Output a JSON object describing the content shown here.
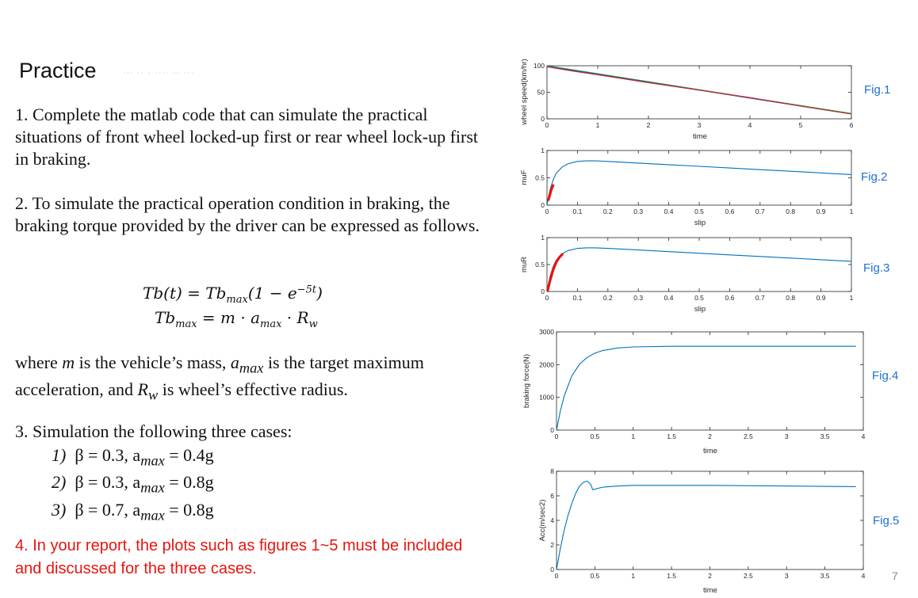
{
  "slide": {
    "title": "Practice",
    "faded_title_text": "··· ·· · ···· ·· ···",
    "item1": "1. Complete the matlab code that can simulate the practical situations of front wheel locked-up first or rear wheel lock-up first in braking.",
    "item2": "2. To simulate the practical operation condition in braking, the braking torque provided by the driver can be expressed as follows.",
    "eq1": {
      "lhs": "Tb(t) = Tb",
      "sub": "max",
      "rhs": "(1 − e",
      "sup": "−5t",
      "end": ")"
    },
    "eq2": {
      "lhs": "Tb",
      "sub": "max",
      "mid": " = m · a",
      "sub2": "max",
      "end": " · R",
      "sub3": "w"
    },
    "where_line1_a": "where ",
    "where_m": "m",
    "where_line1_b": " is the vehicle’s mass, ",
    "where_a": "a",
    "where_a_sub": "max",
    "where_line1_c": " is the target maximum",
    "where_line2_a": "acceleration, and ",
    "where_R": "R",
    "where_R_sub": "w",
    "where_line2_b": " is wheel’s effective radius.",
    "item3": "3. Simulation the following three cases:",
    "cases": [
      {
        "num": "1)",
        "beta": "β = 0.3, a",
        "sub": "max",
        "val": " = 0.4g"
      },
      {
        "num": "2)",
        "beta": "β = 0.3, a",
        "sub": "max",
        "val": " = 0.8g"
      },
      {
        "num": "3)",
        "beta": "β = 0.7, a",
        "sub": "max",
        "val": " = 0.8g"
      }
    ],
    "item4": "4.  In your report, the plots such as figures 1~5 must be included and discussed for the three cases.",
    "page_number": "7",
    "colors": {
      "red_text": "#e8140f",
      "fig_label": "#1f6fd1",
      "line_blue": "#0072bd",
      "line_red": "#d62728",
      "line_green": "#1b9e3a"
    }
  },
  "chart_data": [
    {
      "type": "line",
      "fig_label": "Fig.1",
      "xlabel": "time",
      "ylabel": "wheel speed(km/hr)",
      "xlim": [
        0,
        6
      ],
      "ylim": [
        0,
        100
      ],
      "xticks": [
        "0",
        "1",
        "2",
        "3",
        "4",
        "5",
        "6"
      ],
      "yticks": [
        "0",
        "50",
        "100"
      ],
      "series": [
        {
          "color": "#1b9e3a",
          "x": [
            0,
            6
          ],
          "y": [
            100,
            10
          ]
        },
        {
          "color": "#1f4fbf",
          "x": [
            0,
            6
          ],
          "y": [
            99,
            9
          ]
        },
        {
          "color": "#d62728",
          "x": [
            0,
            0.5,
            1,
            2,
            3,
            4,
            5,
            6
          ],
          "y": [
            98,
            90,
            83,
            68,
            54,
            40,
            24,
            9
          ]
        }
      ]
    },
    {
      "type": "line",
      "fig_label": "Fig.2",
      "xlabel": "slip",
      "ylabel": "muF",
      "xlim": [
        0,
        1
      ],
      "ylim": [
        0,
        1
      ],
      "xticks": [
        "0",
        "0.1",
        "0.2",
        "0.3",
        "0.4",
        "0.5",
        "0.6",
        "0.7",
        "0.8",
        "0.9",
        "1"
      ],
      "yticks": [
        "0",
        "0.5",
        "1"
      ],
      "series": [
        {
          "color": "#0072bd",
          "x": [
            0,
            0.01,
            0.02,
            0.03,
            0.05,
            0.07,
            0.1,
            0.13,
            0.16,
            0.2,
            0.3,
            0.4,
            0.5,
            0.6,
            0.7,
            0.8,
            0.9,
            1.0
          ],
          "y": [
            0,
            0.28,
            0.46,
            0.58,
            0.7,
            0.76,
            0.8,
            0.81,
            0.81,
            0.8,
            0.77,
            0.74,
            0.71,
            0.68,
            0.65,
            0.62,
            0.59,
            0.56
          ]
        },
        {
          "color": "#e8140f",
          "x": [
            0.005,
            0.01,
            0.015,
            0.02
          ],
          "y": [
            0.1,
            0.2,
            0.3,
            0.36
          ],
          "bold": true
        }
      ]
    },
    {
      "type": "line",
      "fig_label": "Fig.3",
      "xlabel": "slip",
      "ylabel": "muR",
      "xlim": [
        0,
        1
      ],
      "ylim": [
        0,
        1
      ],
      "xticks": [
        "0",
        "0.1",
        "0.2",
        "0.3",
        "0.4",
        "0.5",
        "0.6",
        "0.7",
        "0.8",
        "0.9",
        "1"
      ],
      "yticks": [
        "0",
        "0.5",
        "1"
      ],
      "series": [
        {
          "color": "#0072bd",
          "x": [
            0,
            0.01,
            0.02,
            0.03,
            0.05,
            0.07,
            0.1,
            0.13,
            0.16,
            0.2,
            0.3,
            0.4,
            0.5,
            0.6,
            0.7,
            0.8,
            0.9,
            1.0
          ],
          "y": [
            0,
            0.28,
            0.46,
            0.58,
            0.7,
            0.76,
            0.8,
            0.81,
            0.81,
            0.8,
            0.77,
            0.74,
            0.71,
            0.68,
            0.65,
            0.62,
            0.59,
            0.56
          ]
        },
        {
          "color": "#e8140f",
          "x": [
            0.002,
            0.01,
            0.02,
            0.03,
            0.04,
            0.05
          ],
          "y": [
            0.02,
            0.2,
            0.4,
            0.54,
            0.63,
            0.69
          ],
          "bold": true
        }
      ]
    },
    {
      "type": "line",
      "fig_label": "Fig.4",
      "xlabel": "time",
      "ylabel": "braking force(N)",
      "xlim": [
        0,
        4
      ],
      "ylim": [
        0,
        3000
      ],
      "xticks": [
        "0",
        "0.5",
        "1",
        "1.5",
        "2",
        "2.5",
        "3",
        "3.5",
        "4"
      ],
      "yticks": [
        "0",
        "1000",
        "2000",
        "3000"
      ],
      "series": [
        {
          "color": "#0072bd",
          "x": [
            0,
            0.05,
            0.1,
            0.2,
            0.3,
            0.4,
            0.5,
            0.6,
            0.8,
            1.0,
            1.5,
            2.0,
            3.0,
            3.9
          ],
          "y": [
            0,
            580,
            1040,
            1660,
            2010,
            2220,
            2350,
            2430,
            2510,
            2540,
            2560,
            2560,
            2560,
            2560
          ]
        }
      ]
    },
    {
      "type": "line",
      "fig_label": "Fig.5",
      "xlabel": "time",
      "ylabel": "Acc(m/sec2)",
      "xlim": [
        0,
        4
      ],
      "ylim": [
        0,
        8
      ],
      "xticks": [
        "0",
        "0.5",
        "1",
        "1.5",
        "2",
        "2.5",
        "3",
        "3.5",
        "4"
      ],
      "yticks": [
        "0",
        "2",
        "4",
        "6",
        "8"
      ],
      "series": [
        {
          "color": "#0072bd",
          "x": [
            0,
            0.05,
            0.1,
            0.15,
            0.2,
            0.25,
            0.3,
            0.35,
            0.4,
            0.45,
            0.47,
            0.6,
            0.8,
            1.0,
            1.5,
            2.0,
            3.0,
            3.9
          ],
          "y": [
            0,
            1.7,
            3.2,
            4.4,
            5.4,
            6.2,
            6.8,
            7.1,
            7.2,
            6.9,
            6.5,
            6.7,
            6.8,
            6.85,
            6.85,
            6.85,
            6.8,
            6.75
          ]
        }
      ]
    }
  ]
}
